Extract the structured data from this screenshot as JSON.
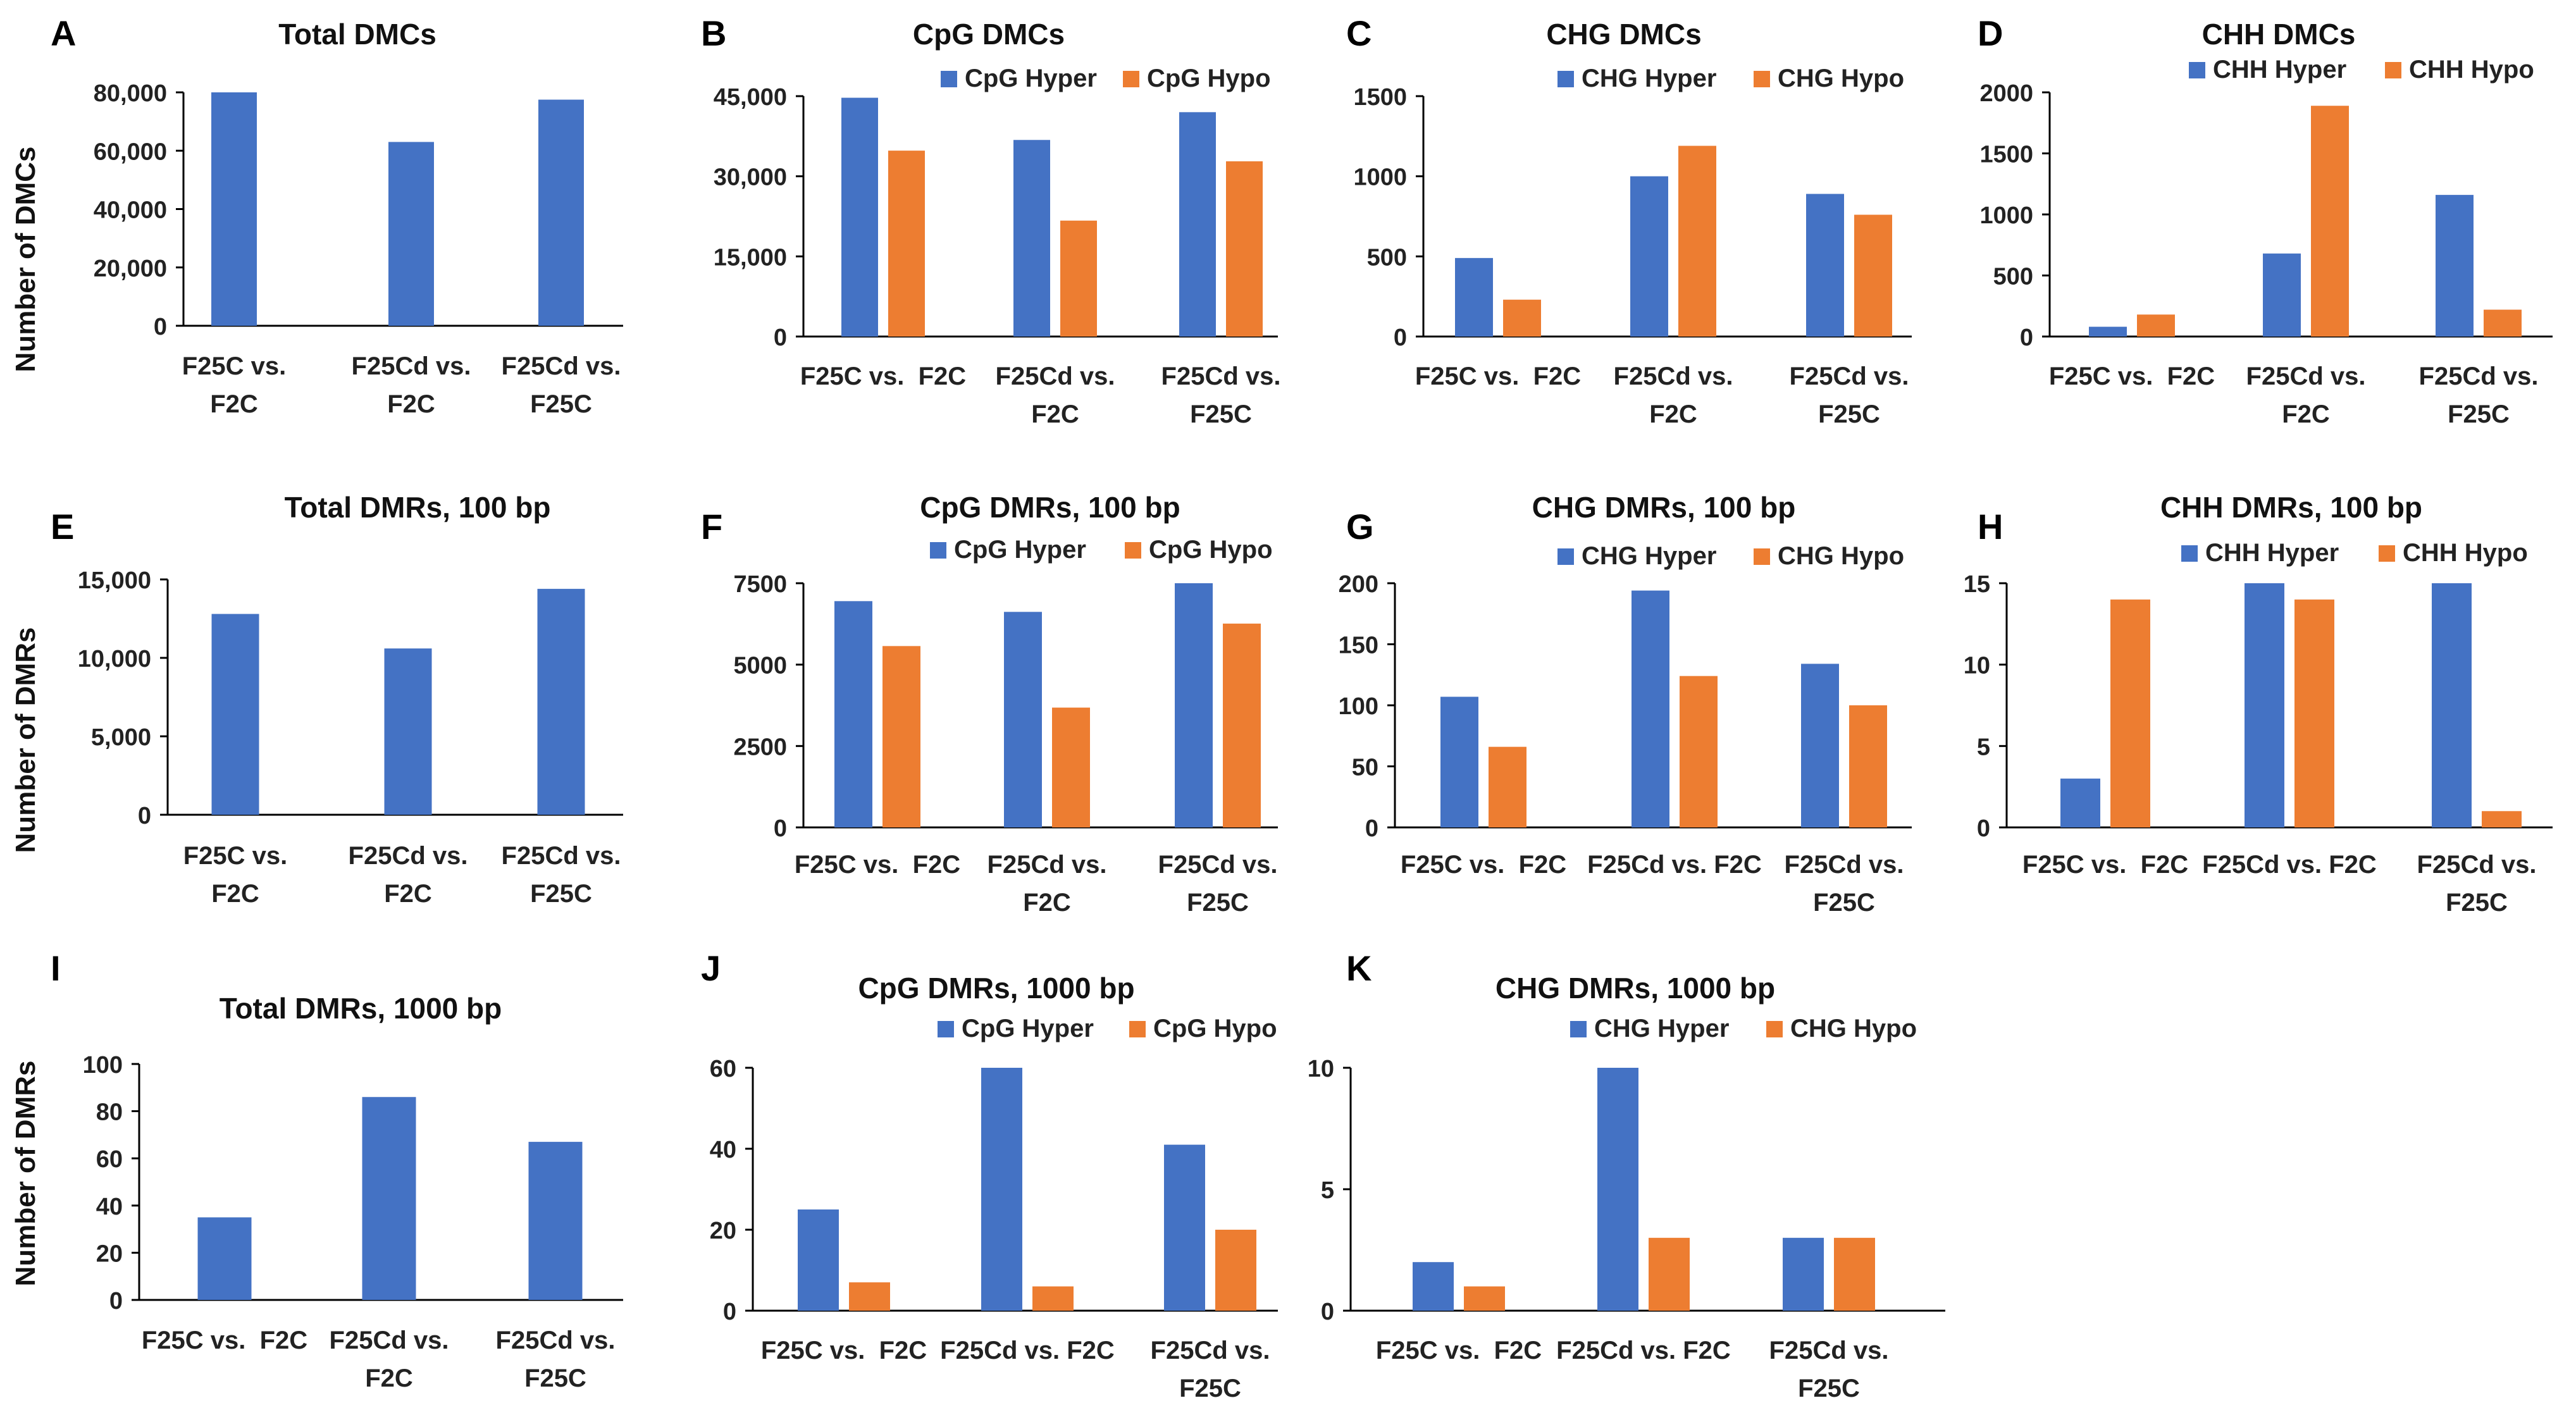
{
  "colors": {
    "hyper": "#4472C4",
    "hypo": "#ED7D31",
    "total": "#4472C4",
    "axis": "#000000",
    "text": "#222222"
  },
  "chart_data": [
    {
      "id": "A",
      "letter": "A",
      "title": "Total DMCs",
      "type": "bar",
      "ylabel": "Number of DMCs",
      "categories": [
        [
          "F25C vs.",
          "F2C"
        ],
        [
          "F25Cd vs.",
          "F2C"
        ],
        [
          "F25Cd vs.",
          "F25C"
        ]
      ],
      "series": [
        {
          "name": "Total",
          "values": [
            80000,
            63000,
            77500
          ]
        }
      ],
      "ylim": [
        0,
        80000
      ],
      "yticks": [
        {
          "v": 0,
          "label": "0"
        },
        {
          "v": 20000,
          "label": "20,000"
        },
        {
          "v": 40000,
          "label": "40,000"
        },
        {
          "v": 60000,
          "label": "60,000"
        },
        {
          "v": 80000,
          "label": "80,000"
        }
      ]
    },
    {
      "id": "B",
      "letter": "B",
      "title": "CpG DMCs",
      "type": "bar",
      "ylabel": "",
      "categories": [
        [
          "F25C vs.  F2C"
        ],
        [
          "F25Cd vs.",
          "F2C"
        ],
        [
          "F25Cd vs.",
          "F25C"
        ]
      ],
      "series": [
        {
          "name": "CpG Hyper",
          "values": [
            44700,
            36800,
            42000
          ]
        },
        {
          "name": "CpG Hypo",
          "values": [
            34800,
            21700,
            32800
          ]
        }
      ],
      "ylim": [
        0,
        45000
      ],
      "yticks": [
        {
          "v": 0,
          "label": "0"
        },
        {
          "v": 15000,
          "label": "15,000"
        },
        {
          "v": 30000,
          "label": "30,000"
        },
        {
          "v": 45000,
          "label": "45,000"
        }
      ]
    },
    {
      "id": "C",
      "letter": "C",
      "title": "CHG DMCs",
      "type": "bar",
      "ylabel": "",
      "categories": [
        [
          "F25C vs.  F2C"
        ],
        [
          "F25Cd vs.",
          "F2C"
        ],
        [
          "F25Cd vs.",
          "F25C"
        ]
      ],
      "series": [
        {
          "name": "CHG Hyper",
          "values": [
            490,
            1000,
            890
          ]
        },
        {
          "name": "CHG Hypo",
          "values": [
            230,
            1190,
            760
          ]
        }
      ],
      "ylim": [
        0,
        1500
      ],
      "yticks": [
        {
          "v": 0,
          "label": "0"
        },
        {
          "v": 500,
          "label": "500"
        },
        {
          "v": 1000,
          "label": "1000"
        },
        {
          "v": 1500,
          "label": "1500"
        }
      ]
    },
    {
      "id": "D",
      "letter": "D",
      "title": "CHH DMCs",
      "type": "bar",
      "ylabel": "",
      "categories": [
        [
          "F25C vs.  F2C"
        ],
        [
          "F25Cd vs.",
          "F2C"
        ],
        [
          "F25Cd vs.",
          "F25C"
        ]
      ],
      "series": [
        {
          "name": "CHH Hyper",
          "values": [
            80,
            680,
            1160
          ]
        },
        {
          "name": "CHH Hypo",
          "values": [
            180,
            1890,
            220
          ]
        }
      ],
      "ylim": [
        0,
        2000
      ],
      "yticks": [
        {
          "v": 0,
          "label": "0"
        },
        {
          "v": 500,
          "label": "500"
        },
        {
          "v": 1000,
          "label": "1000"
        },
        {
          "v": 1500,
          "label": "1500"
        },
        {
          "v": 2000,
          "label": "2000"
        }
      ]
    },
    {
      "id": "E",
      "letter": "E",
      "title": "Total DMRs, 100 bp",
      "type": "bar",
      "ylabel": "Number of DMRs",
      "categories": [
        [
          "F25C vs.",
          "F2C"
        ],
        [
          "F25Cd vs.",
          "F2C"
        ],
        [
          "F25Cd vs.",
          "F25C"
        ]
      ],
      "series": [
        {
          "name": "Total",
          "values": [
            12800,
            10600,
            14400
          ]
        }
      ],
      "ylim": [
        0,
        15000
      ],
      "yticks": [
        {
          "v": 0,
          "label": "0"
        },
        {
          "v": 5000,
          "label": "5,000"
        },
        {
          "v": 10000,
          "label": "10,000"
        },
        {
          "v": 15000,
          "label": "15,000"
        }
      ]
    },
    {
      "id": "F",
      "letter": "F",
      "title": "CpG DMRs, 100 bp",
      "type": "bar",
      "ylabel": "",
      "categories": [
        [
          "F25C vs.  F2C"
        ],
        [
          "F25Cd vs.",
          "F2C"
        ],
        [
          "F25Cd vs.",
          "F25C"
        ]
      ],
      "series": [
        {
          "name": "CpG Hyper",
          "values": [
            6950,
            6620,
            7500
          ]
        },
        {
          "name": "CpG Hypo",
          "values": [
            5570,
            3680,
            6260
          ]
        }
      ],
      "ylim": [
        0,
        7500
      ],
      "yticks": [
        {
          "v": 0,
          "label": "0"
        },
        {
          "v": 2500,
          "label": "2500"
        },
        {
          "v": 5000,
          "label": "5000"
        },
        {
          "v": 7500,
          "label": "7500"
        }
      ]
    },
    {
      "id": "G",
      "letter": "G",
      "title": "CHG DMRs, 100 bp",
      "type": "bar",
      "ylabel": "",
      "categories": [
        [
          "F25C vs.  F2C"
        ],
        [
          "F25Cd vs. F2C"
        ],
        [
          "F25Cd vs.",
          "F25C"
        ]
      ],
      "series": [
        {
          "name": "CHG Hyper",
          "values": [
            107,
            194,
            134
          ]
        },
        {
          "name": "CHG Hypo",
          "values": [
            66,
            124,
            100
          ]
        }
      ],
      "ylim": [
        0,
        200
      ],
      "yticks": [
        {
          "v": 0,
          "label": "0"
        },
        {
          "v": 50,
          "label": "50"
        },
        {
          "v": 100,
          "label": "100"
        },
        {
          "v": 150,
          "label": "150"
        },
        {
          "v": 200,
          "label": "200"
        }
      ]
    },
    {
      "id": "H",
      "letter": "H",
      "title": "CHH DMRs, 100 bp",
      "type": "bar",
      "ylabel": "",
      "categories": [
        [
          "F25C vs.  F2C"
        ],
        [
          "F25Cd vs. F2C"
        ],
        [
          "F25Cd vs.",
          "F25C"
        ]
      ],
      "series": [
        {
          "name": "CHH Hyper",
          "values": [
            3,
            15,
            15
          ]
        },
        {
          "name": "CHH Hypo",
          "values": [
            14,
            14,
            1
          ]
        }
      ],
      "ylim": [
        0,
        15
      ],
      "yticks": [
        {
          "v": 0,
          "label": "0"
        },
        {
          "v": 5,
          "label": "5"
        },
        {
          "v": 10,
          "label": "10"
        },
        {
          "v": 15,
          "label": "15"
        }
      ]
    },
    {
      "id": "I",
      "letter": "I",
      "title": "Total DMRs, 1000 bp",
      "type": "bar",
      "ylabel": "Number of DMRs",
      "categories": [
        [
          "F25C vs.  F2C"
        ],
        [
          "F25Cd vs.",
          "F2C"
        ],
        [
          "F25Cd vs.",
          "F25C"
        ]
      ],
      "series": [
        {
          "name": "Total",
          "values": [
            35,
            86,
            67
          ]
        }
      ],
      "ylim": [
        0,
        100
      ],
      "yticks": [
        {
          "v": 0,
          "label": "0"
        },
        {
          "v": 20,
          "label": "20"
        },
        {
          "v": 40,
          "label": "40"
        },
        {
          "v": 60,
          "label": "60"
        },
        {
          "v": 80,
          "label": "80"
        },
        {
          "v": 100,
          "label": "100"
        }
      ]
    },
    {
      "id": "J",
      "letter": "J",
      "title": "CpG DMRs, 1000 bp",
      "type": "bar",
      "ylabel": "",
      "categories": [
        [
          "F25C vs.  F2C"
        ],
        [
          "F25Cd vs. F2C"
        ],
        [
          "F25Cd vs.",
          "F25C"
        ]
      ],
      "series": [
        {
          "name": "CpG Hyper",
          "values": [
            25,
            60,
            41
          ]
        },
        {
          "name": "CpG Hypo",
          "values": [
            7,
            6,
            20
          ]
        }
      ],
      "ylim": [
        0,
        60
      ],
      "yticks": [
        {
          "v": 0,
          "label": "0"
        },
        {
          "v": 20,
          "label": "20"
        },
        {
          "v": 40,
          "label": "40"
        },
        {
          "v": 60,
          "label": "60"
        }
      ]
    },
    {
      "id": "K",
      "letter": "K",
      "title": "CHG DMRs, 1000 bp",
      "type": "bar",
      "ylabel": "",
      "categories": [
        [
          "F25C vs.  F2C"
        ],
        [
          "F25Cd vs. F2C"
        ],
        [
          "F25Cd vs.",
          "F25C"
        ]
      ],
      "series": [
        {
          "name": "CHG Hyper",
          "values": [
            2,
            10,
            3
          ]
        },
        {
          "name": "CHG Hypo",
          "values": [
            1,
            3,
            3
          ]
        }
      ],
      "ylim": [
        0,
        10
      ],
      "yticks": [
        {
          "v": 0,
          "label": "0"
        },
        {
          "v": 5,
          "label": "5"
        },
        {
          "v": 10,
          "label": "10"
        }
      ]
    }
  ]
}
